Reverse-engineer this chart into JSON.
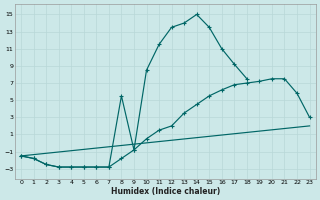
{
  "xlabel": "Humidex (Indice chaleur)",
  "bg_color": "#cce8e8",
  "line_color": "#006666",
  "grid_color": "#b8d8d8",
  "ylim": [
    -4.2,
    16.2
  ],
  "xlim": [
    -0.5,
    23.5
  ],
  "yticks": [
    -3,
    -1,
    1,
    3,
    5,
    7,
    9,
    11,
    13,
    15
  ],
  "xticks": [
    0,
    1,
    2,
    3,
    4,
    5,
    6,
    7,
    8,
    9,
    10,
    11,
    12,
    13,
    14,
    15,
    16,
    17,
    18,
    19,
    20,
    21,
    22,
    23
  ],
  "curve1_x": [
    0,
    1,
    2,
    3,
    4,
    5,
    6,
    7,
    8,
    9,
    10,
    11,
    12,
    13,
    14,
    15,
    16,
    17,
    18
  ],
  "curve1_y": [
    -1.5,
    -1.8,
    -2.5,
    -2.8,
    -2.8,
    -2.8,
    -2.8,
    -2.8,
    5.5,
    -0.8,
    8.5,
    11.5,
    13.5,
    14.0,
    15.0,
    13.5,
    11.0,
    9.2,
    7.5
  ],
  "curve2_x": [
    0,
    1,
    2,
    3,
    4,
    5,
    6,
    7,
    8,
    9,
    10,
    11,
    12,
    13,
    14,
    15,
    16,
    17,
    18,
    19,
    20,
    21,
    22,
    23
  ],
  "curve2_y": [
    -1.5,
    -1.8,
    -2.5,
    -2.8,
    -2.8,
    -2.8,
    -2.8,
    -2.8,
    -1.8,
    -0.8,
    0.5,
    1.5,
    2.0,
    3.5,
    4.5,
    5.5,
    6.2,
    6.8,
    7.0,
    7.2,
    7.5,
    7.5,
    5.8,
    3.0
  ],
  "curve3_x": [
    0,
    23
  ],
  "curve3_y": [
    -1.5,
    2.0
  ]
}
